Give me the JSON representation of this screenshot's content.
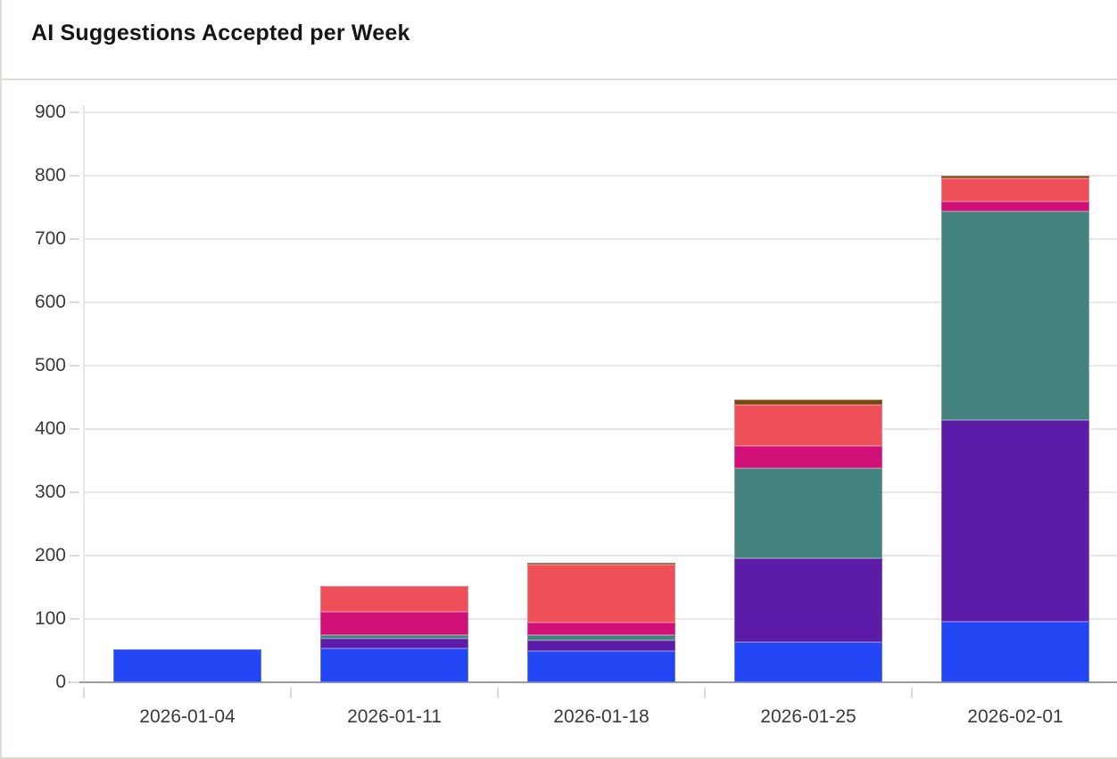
{
  "card": {
    "title": "AI Suggestions Accepted per Week"
  },
  "chart_data": {
    "type": "bar",
    "stacked": true,
    "title": "AI Suggestions Accepted per Week",
    "categories": [
      "2026-01-04",
      "2026-01-11",
      "2026-01-18",
      "2026-01-25",
      "2026-02-01"
    ],
    "series": [
      {
        "name": "blue-series",
        "color": "#2447f5",
        "values": [
          52,
          54,
          50,
          63,
          96
        ]
      },
      {
        "name": "purple-series",
        "color": "#5c1ca7",
        "values": [
          0,
          15,
          16,
          133,
          318
        ]
      },
      {
        "name": "teal-series",
        "color": "#44827d",
        "values": [
          0,
          5,
          8,
          142,
          330
        ]
      },
      {
        "name": "magenta-series",
        "color": "#d01077",
        "values": [
          0,
          38,
          21,
          35,
          15
        ]
      },
      {
        "name": "red-series",
        "color": "#ee4f59",
        "values": [
          0,
          40,
          91,
          65,
          37
        ]
      },
      {
        "name": "brown-series",
        "color": "#7b450f",
        "values": [
          0,
          0,
          3,
          9,
          4
        ]
      }
    ],
    "stack_totals": [
      52,
      152,
      189,
      447,
      800
    ],
    "yticks": [
      0,
      100,
      200,
      300,
      400,
      500,
      600,
      700,
      800,
      900
    ],
    "ylim": [
      0,
      900
    ],
    "xlabel": "",
    "ylabel": "",
    "legend": "none",
    "grid": true
  },
  "colors": {
    "axis_line": "#9b9b9f",
    "grid_line": "#e7e6ec",
    "tick_label": "#3a3a3a",
    "title_text": "#161616",
    "divider": "#dfdccf",
    "background": "#ffffff"
  }
}
